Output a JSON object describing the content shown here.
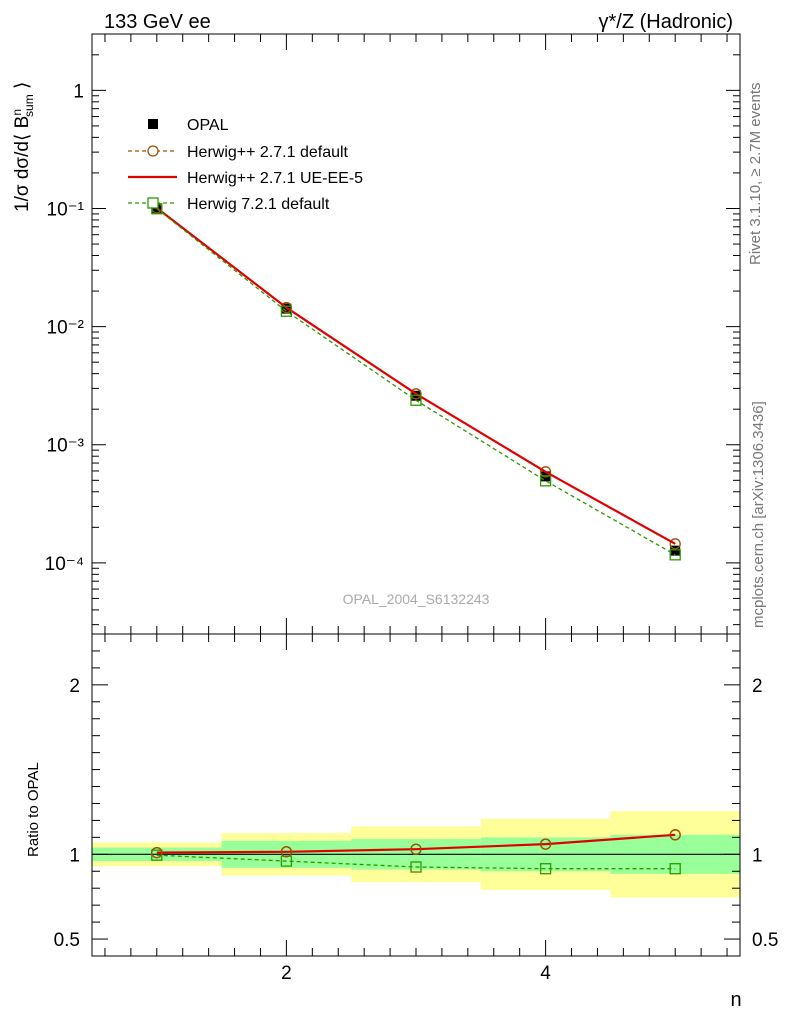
{
  "header": {
    "left": "133 GeV ee",
    "right": "γ*/Z (Hadronic)"
  },
  "side_text": {
    "rivet": "Rivet 3.1.10, ≥ 2.7M events",
    "mcplots": "mcplots.cern.ch [arXiv:1306.3436]"
  },
  "analysis_label": "OPAL_2004_S6132243",
  "chart_data": [
    {
      "type": "line",
      "panel": "main",
      "ylabel": "1/σ dσ/d⟨ B^n_sum ⟩",
      "yscale": "log",
      "ylim": [
        2.5e-05,
        3
      ],
      "xlim": [
        0.5,
        5.5
      ],
      "yticks": [
        {
          "value": 1,
          "label": "1"
        },
        {
          "value": 0.1,
          "label": "10⁻¹"
        },
        {
          "value": 0.01,
          "label": "10⁻²"
        },
        {
          "value": 0.001,
          "label": "10⁻³"
        },
        {
          "value": 0.0001,
          "label": "10⁻⁴"
        }
      ],
      "x": [
        1,
        2,
        3,
        4,
        5
      ],
      "legend_position": "top-left",
      "series": [
        {
          "name": "OPAL",
          "style": "data",
          "color": "#000000",
          "values": [
            0.1,
            0.0142,
            0.0026,
            0.00054,
            0.000127
          ]
        },
        {
          "name": "Herwig++ 2.7.1 default",
          "style": "dashed-circle",
          "color": "#a05000",
          "values": [
            0.101,
            0.0145,
            0.0027,
            0.00059,
            0.000145
          ]
        },
        {
          "name": "Herwig++ 2.7.1 UE-EE-5",
          "style": "solid",
          "color": "#e00000",
          "values": [
            0.101,
            0.0145,
            0.0027,
            0.00059,
            0.000145
          ]
        },
        {
          "name": "Herwig 7.2.1 default",
          "style": "dashed-square",
          "color": "#2a9a00",
          "values": [
            0.0995,
            0.0135,
            0.00238,
            0.000495,
            0.000117
          ]
        }
      ]
    },
    {
      "type": "line",
      "panel": "ratio",
      "ylabel": "Ratio to OPAL",
      "xlabel": "n",
      "ylim": [
        0.4,
        2.3
      ],
      "yticks": [
        {
          "value": 0.5,
          "label": "0.5"
        },
        {
          "value": 1,
          "label": "1"
        },
        {
          "value": 2,
          "label": "2"
        }
      ],
      "xticks": [
        {
          "value": 2,
          "label": "2"
        },
        {
          "value": 4,
          "label": "4"
        }
      ],
      "x": [
        1,
        2,
        3,
        4,
        5
      ],
      "bins": [
        [
          0.5,
          1.5
        ],
        [
          1.5,
          2.5
        ],
        [
          2.5,
          3.5
        ],
        [
          3.5,
          4.5
        ],
        [
          4.5,
          5.5
        ]
      ],
      "band_inner": {
        "color": "#99ff99",
        "lo": [
          0.96,
          0.92,
          0.91,
          0.9,
          0.885
        ],
        "hi": [
          1.04,
          1.08,
          1.09,
          1.1,
          1.115
        ]
      },
      "band_outer": {
        "color": "#ffff99",
        "lo": [
          0.93,
          0.875,
          0.835,
          0.79,
          0.745
        ],
        "hi": [
          1.07,
          1.125,
          1.165,
          1.21,
          1.255
        ]
      },
      "series": [
        {
          "name": "Herwig++ 2.7.1 default",
          "style": "circle",
          "color": "#a05000",
          "values": [
            1.01,
            1.015,
            1.03,
            1.06,
            1.115
          ]
        },
        {
          "name": "Herwig++ 2.7.1 UE-EE-5",
          "style": "solid",
          "color": "#e00000",
          "values": [
            1.01,
            1.015,
            1.03,
            1.06,
            1.115
          ]
        },
        {
          "name": "Herwig 7.2.1 default",
          "style": "dashed-square",
          "color": "#2a9a00",
          "values": [
            0.995,
            0.96,
            0.925,
            0.915,
            0.915
          ]
        }
      ]
    }
  ]
}
